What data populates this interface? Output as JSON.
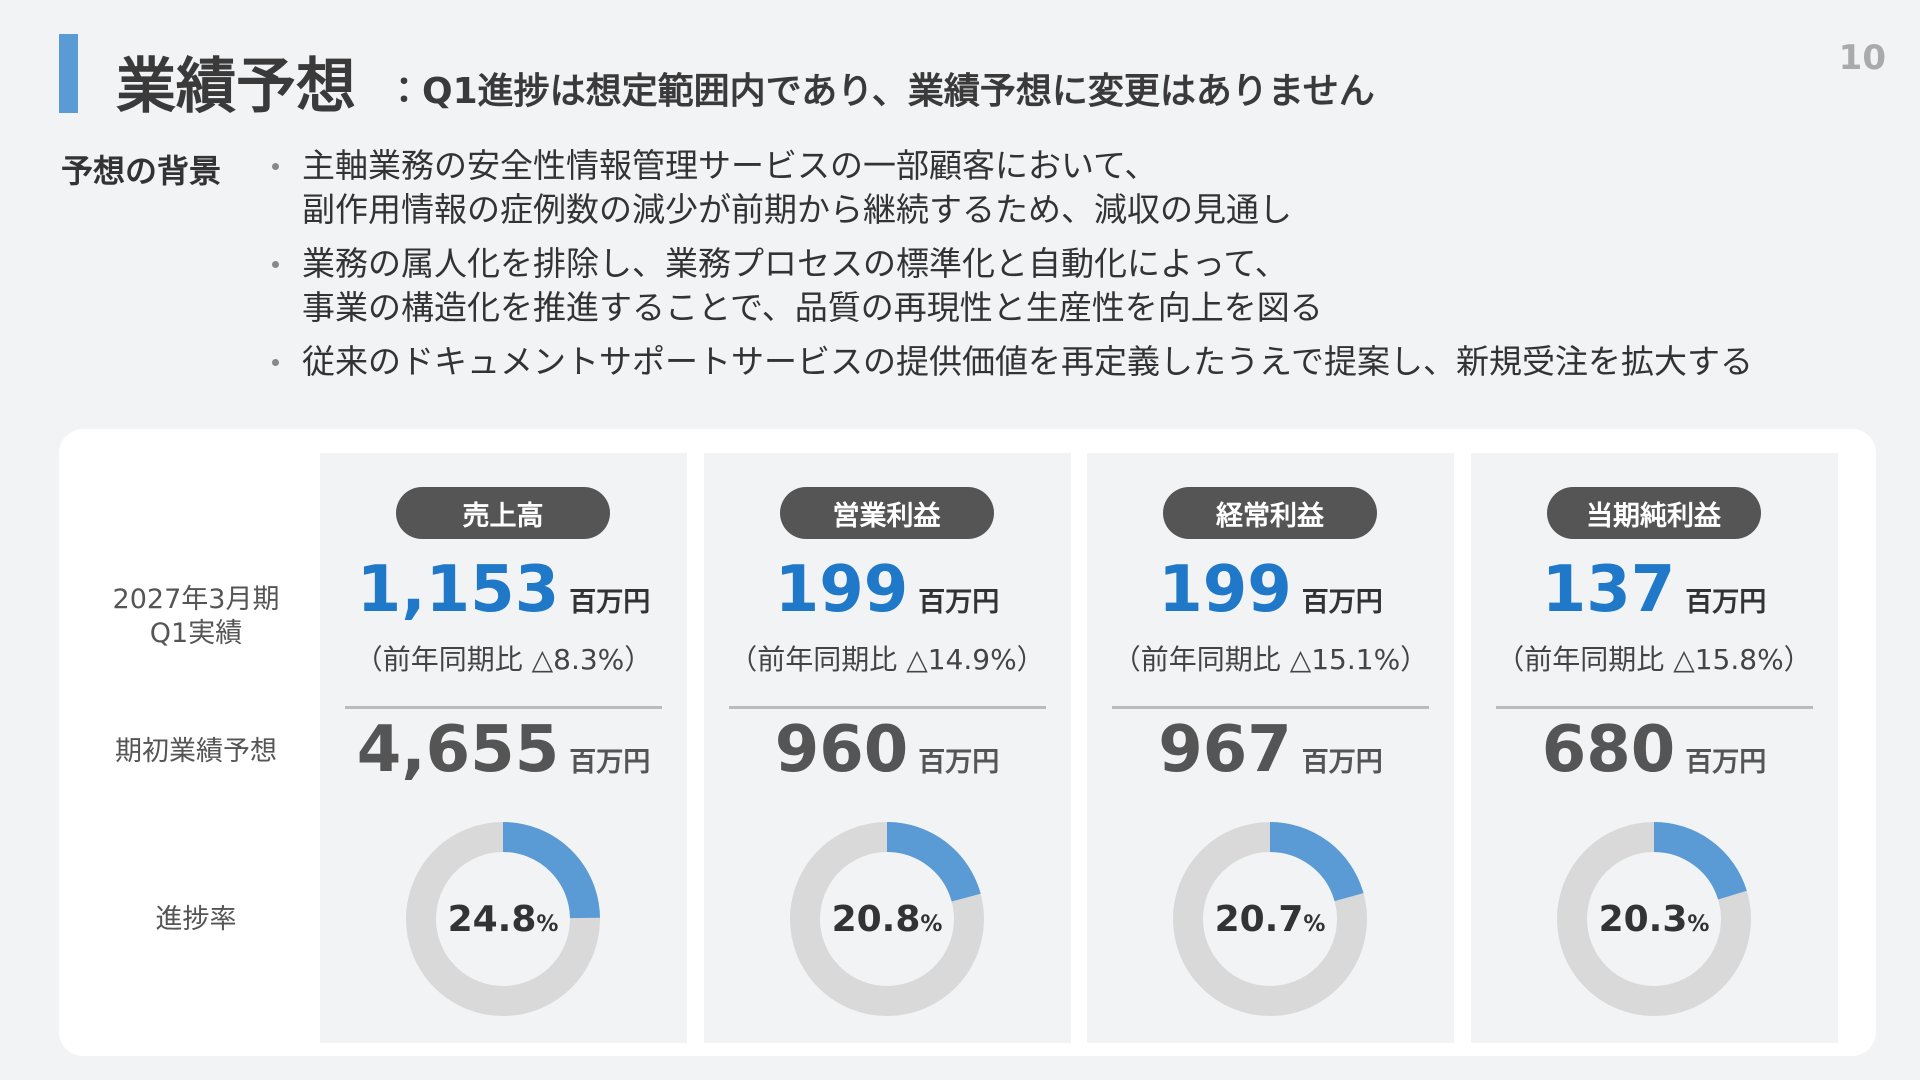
{
  "page_number": "10",
  "header": {
    "title": "業績予想",
    "separator": "：",
    "subtitle": "Q1進捗は想定範囲内であり、業績予想に変更はありません"
  },
  "background": {
    "label": "予想の背景",
    "bullets": [
      [
        "主軸業務の安全性情報管理サービスの一部顧客において、",
        "副作用情報の症例数の減少が前期から継続するため、減収の見通し"
      ],
      [
        "業務の属人化を排除し、業務プロセスの標準化と自動化によって、",
        "事業の構造化を推進することで、品質の再現性と生産性を向上を図る"
      ],
      [
        "従来のドキュメントサポートサービスの提供価値を再定義したうえで提案し、新規受注を拡大する"
      ]
    ]
  },
  "row_labels": {
    "actual": [
      "2027年3月期",
      "Q1実績"
    ],
    "forecast": "期初業績予想",
    "progress": "進捗率"
  },
  "metrics": [
    {
      "name": "売上高",
      "actual": "1,153",
      "actual_unit": "百万円",
      "yoy": "（前年同期比 △8.3%）",
      "forecast": "4,655",
      "forecast_unit": "百万円",
      "progress": 24.8,
      "progress_unit": "%"
    },
    {
      "name": "営業利益",
      "actual": "199",
      "actual_unit": "百万円",
      "yoy": "（前年同期比 △14.9%）",
      "forecast": "960",
      "forecast_unit": "百万円",
      "progress": 20.8,
      "progress_unit": "%"
    },
    {
      "name": "経常利益",
      "actual": "199",
      "actual_unit": "百万円",
      "yoy": "（前年同期比 △15.1%）",
      "forecast": "967",
      "forecast_unit": "百万円",
      "progress": 20.7,
      "progress_unit": "%"
    },
    {
      "name": "当期純利益",
      "actual": "137",
      "actual_unit": "百万円",
      "yoy": "（前年同期比 △15.8%）",
      "forecast": "680",
      "forecast_unit": "百万円",
      "progress": 20.3,
      "progress_unit": "%"
    }
  ]
}
